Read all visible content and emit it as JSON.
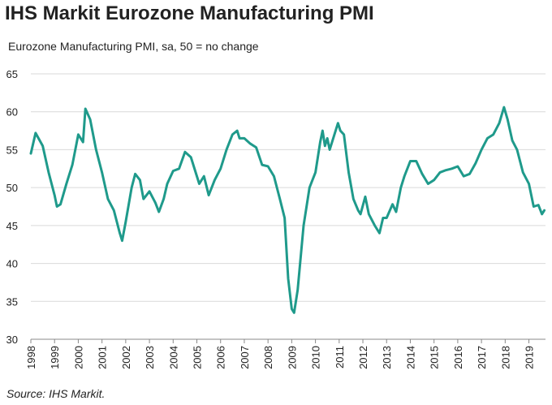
{
  "chart_data": {
    "type": "line",
    "title": "IHS Markit Eurozone Manufacturing PMI",
    "subtitle": "Eurozone Manufacturing PMI, sa, 50 = no change",
    "source": "Source: IHS Markit.",
    "color": "#1f9a8b",
    "grid": true,
    "xlim": [
      1998,
      2019.7
    ],
    "xticks": [
      1998,
      1999,
      2000,
      2001,
      2002,
      2003,
      2004,
      2005,
      2006,
      2007,
      2008,
      2009,
      2010,
      2011,
      2012,
      2013,
      2014,
      2015,
      2016,
      2017,
      2018,
      2019
    ],
    "ylim": [
      30,
      65
    ],
    "yticks": [
      30,
      35,
      40,
      45,
      50,
      55,
      60,
      65
    ],
    "x": [
      1998.0,
      1998.2,
      1998.5,
      1998.75,
      1999.0,
      1999.1,
      1999.25,
      1999.5,
      1999.75,
      2000.0,
      2000.2,
      2000.3,
      2000.5,
      2000.75,
      2001.0,
      2001.25,
      2001.5,
      2001.75,
      2001.85,
      2002.0,
      2002.25,
      2002.4,
      2002.6,
      2002.75,
      2003.0,
      2003.25,
      2003.4,
      2003.6,
      2003.75,
      2004.0,
      2004.25,
      2004.5,
      2004.75,
      2005.0,
      2005.1,
      2005.3,
      2005.5,
      2005.75,
      2006.0,
      2006.25,
      2006.5,
      2006.7,
      2006.8,
      2007.0,
      2007.25,
      2007.5,
      2007.75,
      2008.0,
      2008.25,
      2008.5,
      2008.7,
      2008.85,
      2009.0,
      2009.1,
      2009.25,
      2009.5,
      2009.75,
      2010.0,
      2010.2,
      2010.3,
      2010.4,
      2010.5,
      2010.6,
      2010.75,
      2010.95,
      2011.05,
      2011.2,
      2011.4,
      2011.6,
      2011.8,
      2011.9,
      2012.1,
      2012.25,
      2012.5,
      2012.7,
      2012.85,
      2013.0,
      2013.25,
      2013.4,
      2013.6,
      2013.75,
      2014.0,
      2014.25,
      2014.5,
      2014.75,
      2015.0,
      2015.25,
      2015.5,
      2015.75,
      2016.0,
      2016.25,
      2016.5,
      2016.75,
      2017.0,
      2017.25,
      2017.5,
      2017.75,
      2017.95,
      2018.1,
      2018.3,
      2018.5,
      2018.75,
      2019.0,
      2019.2,
      2019.4,
      2019.55,
      2019.65
    ],
    "values": [
      54.5,
      57.2,
      55.5,
      52,
      49,
      47.5,
      47.8,
      50.5,
      53,
      57,
      56,
      60.4,
      59,
      55,
      52,
      48.5,
      47,
      44,
      43,
      45.5,
      50,
      51.8,
      51,
      48.5,
      49.5,
      48,
      46.8,
      48.5,
      50.5,
      52.2,
      52.5,
      54.7,
      54,
      51.5,
      50.5,
      51.5,
      49,
      51,
      52.5,
      55,
      57,
      57.5,
      56.5,
      56.5,
      55.8,
      55.3,
      53,
      52.8,
      51.5,
      48.5,
      46,
      38,
      34,
      33.5,
      36.5,
      45,
      50,
      52,
      56,
      57.5,
      55.5,
      56.5,
      55,
      56.5,
      58.5,
      57.5,
      57,
      52,
      48.5,
      47,
      46.5,
      48.8,
      46.5,
      45,
      44,
      46,
      46,
      47.8,
      46.8,
      50,
      51.5,
      53.5,
      53.5,
      51.8,
      50.5,
      51,
      52,
      52.3,
      52.5,
      52.8,
      51.5,
      51.8,
      53.2,
      55,
      56.5,
      57,
      58.5,
      60.6,
      59,
      56.2,
      55,
      52,
      50.5,
      47.5,
      47.7,
      46.5,
      47
    ]
  }
}
